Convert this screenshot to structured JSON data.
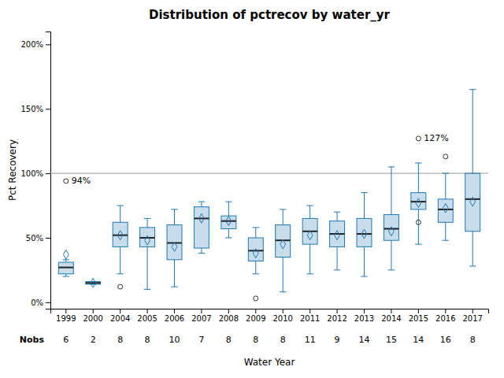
{
  "chart_data": {
    "type": "box",
    "title": "Distribution of pctrecov by water_yr",
    "xlabel": "Water Year",
    "ylabel": "Pct Recovery",
    "categories": [
      "1999",
      "2000",
      "2004",
      "2005",
      "2006",
      "2007",
      "2008",
      "2009",
      "2010",
      "2011",
      "2012",
      "2013",
      "2014",
      "2015",
      "2016",
      "2017"
    ],
    "whislo": [
      20,
      14,
      22,
      10,
      12,
      38,
      50,
      22,
      8,
      22,
      25,
      20,
      25,
      45,
      48,
      28
    ],
    "q1": [
      22,
      14,
      43,
      43,
      33,
      42,
      57,
      32,
      35,
      45,
      43,
      43,
      48,
      72,
      62,
      55
    ],
    "median": [
      27,
      15,
      52,
      50,
      46,
      65,
      63,
      40,
      48,
      55,
      53,
      53,
      57,
      78,
      72,
      80
    ],
    "q3": [
      31,
      16,
      62,
      58,
      60,
      74,
      67,
      50,
      60,
      65,
      63,
      65,
      68,
      85,
      80,
      100
    ],
    "whishi": [
      33,
      16,
      75,
      65,
      72,
      78,
      78,
      58,
      72,
      75,
      70,
      85,
      105,
      108,
      100,
      165
    ],
    "means": [
      37,
      15,
      52,
      48,
      43,
      65,
      63,
      38,
      45,
      52,
      52,
      53,
      55,
      77,
      73,
      78
    ],
    "outliers": [
      [
        94
      ],
      [],
      [
        12
      ],
      [],
      [],
      [],
      [],
      [
        3
      ],
      [],
      [],
      [],
      [],
      [],
      [
        127,
        62
      ],
      [
        113
      ],
      []
    ],
    "nobs_label": "Nobs",
    "nobs": [
      6,
      2,
      8,
      8,
      10,
      7,
      8,
      8,
      8,
      11,
      9,
      14,
      15,
      14,
      16,
      8
    ],
    "annotations": [
      {
        "category": "1999",
        "value": 94,
        "label": "94%"
      },
      {
        "category": "2015",
        "value": 127,
        "label": "127%"
      }
    ],
    "reference_line": 100,
    "ylim": [
      -5,
      210
    ],
    "yticks": [
      {
        "value": 0,
        "label": "0%"
      },
      {
        "value": 50,
        "label": "50%"
      },
      {
        "value": 100,
        "label": "100%"
      },
      {
        "value": 150,
        "label": "150%"
      },
      {
        "value": 200,
        "label": "200%"
      }
    ],
    "grid": false
  }
}
